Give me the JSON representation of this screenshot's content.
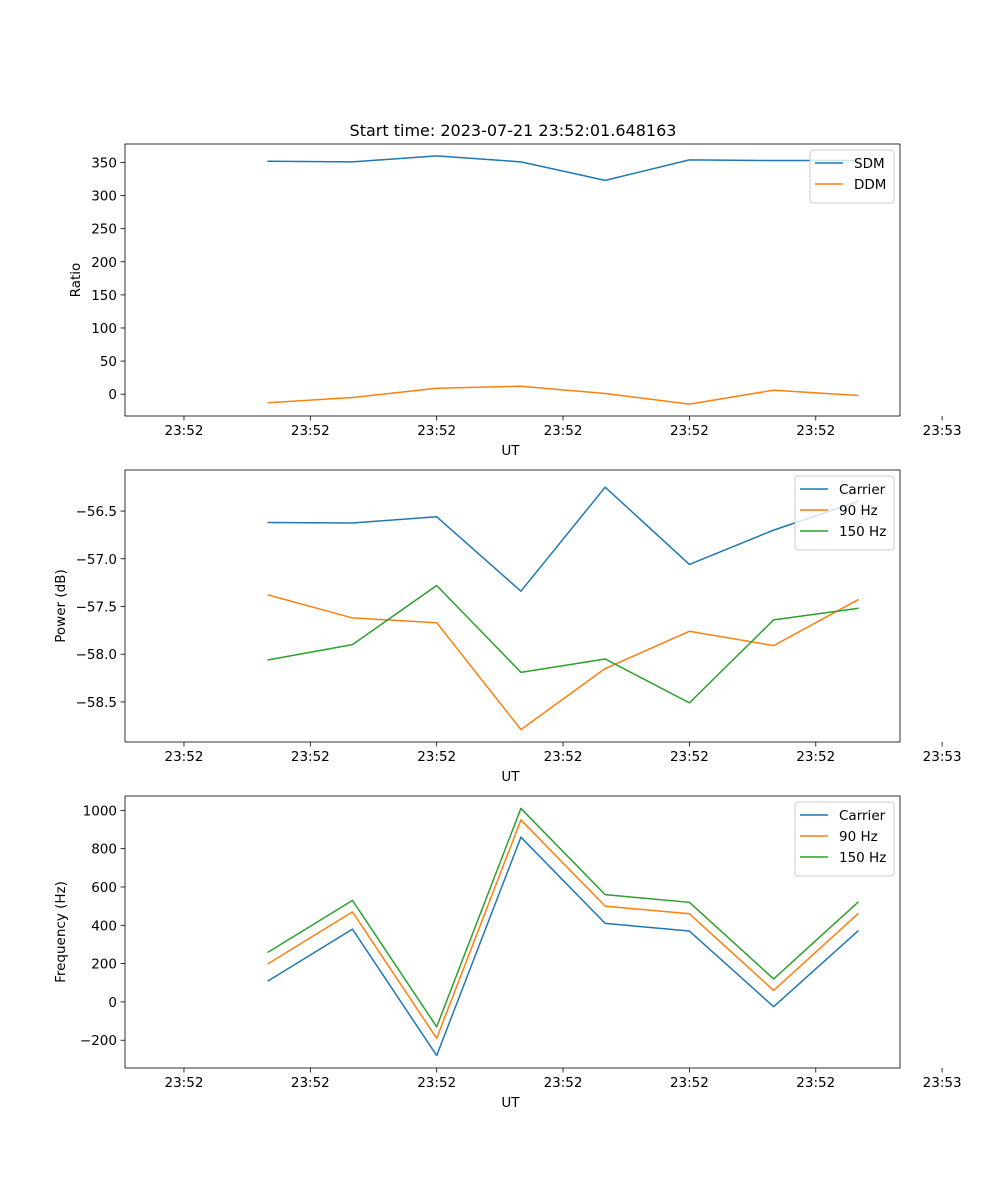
{
  "figure": {
    "title": "Start time: 2023-07-21 23:52:01.648163"
  },
  "chart_data": [
    {
      "type": "line",
      "title": "Start time: 2023-07-21 23:52:01.648163",
      "xlabel": "UT",
      "ylabel": "Ratio",
      "x": [
        1,
        2,
        3,
        4,
        5,
        6,
        7,
        8
      ],
      "xlim": [
        -0.7,
        8.5
      ],
      "x_ticks": [
        0,
        1.5,
        3,
        4.5,
        6,
        7.5,
        9
      ],
      "x_tick_labels": [
        "23:52",
        "23:52",
        "23:52",
        "23:52",
        "23:52",
        "23:52",
        "23:53"
      ],
      "ylim": [
        -33,
        378
      ],
      "y_ticks": [
        0,
        50,
        100,
        150,
        200,
        250,
        300,
        350
      ],
      "y_tick_labels": [
        "0",
        "50",
        "100",
        "150",
        "200",
        "250",
        "300",
        "350"
      ],
      "legend_position": "top-right",
      "series": [
        {
          "name": "SDM",
          "color": "#1f77b4",
          "values": [
            352,
            351,
            360,
            351,
            323,
            354,
            353,
            353
          ]
        },
        {
          "name": "DDM",
          "color": "#ff7f0e",
          "values": [
            -13,
            -5,
            9,
            12,
            1,
            -15,
            6,
            -2
          ]
        }
      ]
    },
    {
      "type": "line",
      "xlabel": "UT",
      "ylabel": "Power (dB)",
      "x": [
        1,
        2,
        3,
        4,
        5,
        6,
        7,
        8
      ],
      "xlim": [
        -0.7,
        8.5
      ],
      "x_ticks": [
        0,
        1.5,
        3,
        4.5,
        6,
        7.5,
        9
      ],
      "x_tick_labels": [
        "23:52",
        "23:52",
        "23:52",
        "23:52",
        "23:52",
        "23:52",
        "23:53"
      ],
      "ylim": [
        -58.92,
        -56.07
      ],
      "y_ticks": [
        -58.5,
        -58.0,
        -57.5,
        -57.0,
        -56.5
      ],
      "y_tick_labels": [
        "−58.5",
        "−58.0",
        "−57.5",
        "−57.0",
        "−56.5"
      ],
      "legend_position": "top-right",
      "series": [
        {
          "name": "Carrier",
          "color": "#1f77b4",
          "values": [
            -56.62,
            -56.625,
            -56.56,
            -57.34,
            -56.25,
            -57.06,
            -56.7,
            -56.4
          ]
        },
        {
          "name": "90 Hz",
          "color": "#ff7f0e",
          "values": [
            -57.38,
            -57.62,
            -57.67,
            -58.79,
            -58.15,
            -57.76,
            -57.91,
            -57.43
          ]
        },
        {
          "name": "150 Hz",
          "color": "#2ca02c",
          "values": [
            -58.06,
            -57.9,
            -57.28,
            -58.19,
            -58.05,
            -58.51,
            -57.64,
            -57.52
          ]
        }
      ]
    },
    {
      "type": "line",
      "xlabel": "UT",
      "ylabel": "Frequency (Hz)",
      "x": [
        1,
        2,
        3,
        4,
        5,
        6,
        7,
        8
      ],
      "xlim": [
        -0.7,
        8.5
      ],
      "x_ticks": [
        0,
        1.5,
        3,
        4.5,
        6,
        7.5,
        9
      ],
      "x_tick_labels": [
        "23:52",
        "23:52",
        "23:52",
        "23:52",
        "23:52",
        "23:52",
        "23:53"
      ],
      "ylim": [
        -345,
        1075
      ],
      "y_ticks": [
        -200,
        0,
        200,
        400,
        600,
        800,
        1000
      ],
      "y_tick_labels": [
        "−200",
        "0",
        "200",
        "400",
        "600",
        "800",
        "1000"
      ],
      "legend_position": "top-right",
      "series": [
        {
          "name": "Carrier",
          "color": "#1f77b4",
          "values": [
            110,
            380,
            -280,
            860,
            410,
            370,
            -25,
            370
          ]
        },
        {
          "name": "90 Hz",
          "color": "#ff7f0e",
          "values": [
            200,
            470,
            -190,
            950,
            500,
            460,
            60,
            460
          ]
        },
        {
          "name": "150 Hz",
          "color": "#2ca02c",
          "values": [
            260,
            530,
            -130,
            1010,
            560,
            520,
            120,
            520
          ]
        }
      ]
    }
  ]
}
